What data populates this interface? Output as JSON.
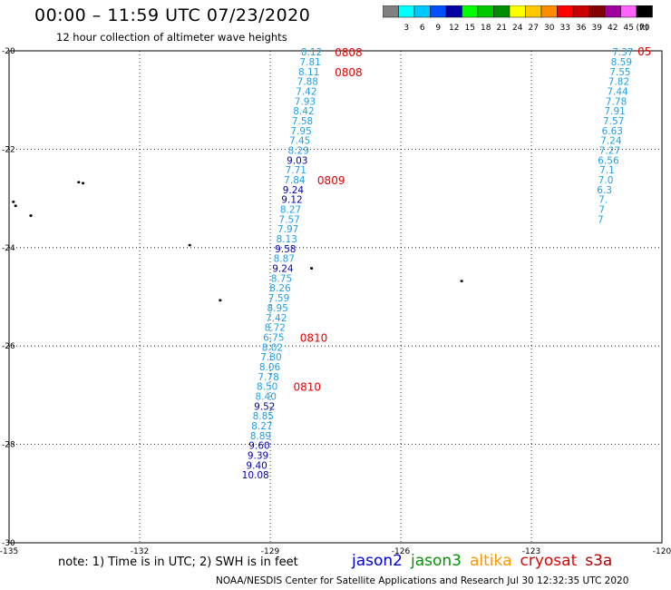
{
  "header": {
    "title": "00:00 – 11:59 UTC 07/23/2020",
    "subtitle": "12 hour collection of altimeter wave heights"
  },
  "color_scale": {
    "unit": "(ft)",
    "swatches": [
      {
        "label": "",
        "color": "#808080"
      },
      {
        "label": "3",
        "color": "#00ffff"
      },
      {
        "label": "6",
        "color": "#00c8ff"
      },
      {
        "label": "9",
        "color": "#0050ff"
      },
      {
        "label": "12",
        "color": "#0000a0"
      },
      {
        "label": "15",
        "color": "#00ff00"
      },
      {
        "label": "18",
        "color": "#00c800"
      },
      {
        "label": "21",
        "color": "#008c00"
      },
      {
        "label": "24",
        "color": "#ffff00"
      },
      {
        "label": "27",
        "color": "#ffc800"
      },
      {
        "label": "30",
        "color": "#ff8c00"
      },
      {
        "label": "33",
        "color": "#ff0000"
      },
      {
        "label": "36",
        "color": "#c80000"
      },
      {
        "label": "39",
        "color": "#820000"
      },
      {
        "label": "42",
        "color": "#a000a0"
      },
      {
        "label": "45",
        "color": "#ff64ff"
      },
      {
        "label": "70",
        "color": "#000000"
      }
    ]
  },
  "map": {
    "lon_ticks": [
      "-135",
      "-132",
      "-129",
      "-126",
      "-123",
      "-120"
    ],
    "lat_ticks": [
      "-20",
      "-22",
      "-24",
      "-26",
      "-28",
      "-30"
    ],
    "lon_range": [
      -135,
      -120
    ],
    "lat_range": [
      -30,
      -20
    ]
  },
  "colors": {
    "light": "#1ea0e6",
    "dark": "#0000b4",
    "time": "#e60000"
  },
  "track_main": [
    {
      "lat": -20.02,
      "lon": -128.05,
      "v": "8.12",
      "c": "light"
    },
    {
      "lat": -20.22,
      "lon": -128.08,
      "v": "7.81",
      "c": "light"
    },
    {
      "lat": -20.42,
      "lon": -128.11,
      "v": "8.11",
      "c": "light"
    },
    {
      "lat": -20.62,
      "lon": -128.14,
      "v": "7.88",
      "c": "light"
    },
    {
      "lat": -20.82,
      "lon": -128.17,
      "v": "7.42",
      "c": "light"
    },
    {
      "lat": -21.02,
      "lon": -128.2,
      "v": "7.93",
      "c": "light"
    },
    {
      "lat": -21.22,
      "lon": -128.23,
      "v": "8.42",
      "c": "light"
    },
    {
      "lat": -21.42,
      "lon": -128.26,
      "v": "7.58",
      "c": "light"
    },
    {
      "lat": -21.62,
      "lon": -128.29,
      "v": "7.95",
      "c": "light"
    },
    {
      "lat": -21.82,
      "lon": -128.32,
      "v": "7.45",
      "c": "light"
    },
    {
      "lat": -22.02,
      "lon": -128.35,
      "v": "8.29",
      "c": "light"
    },
    {
      "lat": -22.22,
      "lon": -128.38,
      "v": "9.03",
      "c": "dark"
    },
    {
      "lat": -22.42,
      "lon": -128.41,
      "v": "7.71",
      "c": "light"
    },
    {
      "lat": -22.62,
      "lon": -128.44,
      "v": "7.84",
      "c": "light"
    },
    {
      "lat": -22.82,
      "lon": -128.47,
      "v": "9.24",
      "c": "dark"
    },
    {
      "lat": -23.02,
      "lon": -128.5,
      "v": "9.12",
      "c": "dark"
    },
    {
      "lat": -23.22,
      "lon": -128.53,
      "v": "8.27",
      "c": "light"
    },
    {
      "lat": -23.42,
      "lon": -128.56,
      "v": "7.57",
      "c": "light"
    },
    {
      "lat": -23.62,
      "lon": -128.59,
      "v": "7.97",
      "c": "light"
    },
    {
      "lat": -23.82,
      "lon": -128.62,
      "v": "8.13",
      "c": "light"
    },
    {
      "lat": -24.02,
      "lon": -128.65,
      "v": "9.58",
      "c": "dark"
    },
    {
      "lat": -24.22,
      "lon": -128.68,
      "v": "8.87",
      "c": "light"
    },
    {
      "lat": -24.42,
      "lon": -128.71,
      "v": "9.24",
      "c": "dark"
    },
    {
      "lat": -24.62,
      "lon": -128.74,
      "v": "8.75",
      "c": "light"
    },
    {
      "lat": -24.82,
      "lon": -128.77,
      "v": "8.26",
      "c": "light"
    },
    {
      "lat": -25.02,
      "lon": -128.8,
      "v": "7.59",
      "c": "light"
    },
    {
      "lat": -25.22,
      "lon": -128.83,
      "v": "8.95",
      "c": "light"
    },
    {
      "lat": -25.42,
      "lon": -128.86,
      "v": "7.42",
      "c": "light"
    },
    {
      "lat": -25.62,
      "lon": -128.89,
      "v": "8.72",
      "c": "light"
    },
    {
      "lat": -25.82,
      "lon": -128.92,
      "v": "6.75",
      "c": "light"
    },
    {
      "lat": -26.02,
      "lon": -128.95,
      "v": "8.02",
      "c": "light"
    },
    {
      "lat": -26.22,
      "lon": -128.98,
      "v": "7.80",
      "c": "light"
    },
    {
      "lat": -26.42,
      "lon": -129.01,
      "v": "8.06",
      "c": "light"
    },
    {
      "lat": -26.62,
      "lon": -129.04,
      "v": "7.78",
      "c": "light"
    },
    {
      "lat": -26.82,
      "lon": -129.07,
      "v": "8.50",
      "c": "light"
    },
    {
      "lat": -27.02,
      "lon": -129.1,
      "v": "8.40",
      "c": "light"
    },
    {
      "lat": -27.22,
      "lon": -129.13,
      "v": "9.52",
      "c": "dark"
    },
    {
      "lat": -27.42,
      "lon": -129.16,
      "v": "8.85",
      "c": "light"
    },
    {
      "lat": -27.62,
      "lon": -129.19,
      "v": "8.27",
      "c": "light"
    },
    {
      "lat": -27.82,
      "lon": -129.22,
      "v": "8.89",
      "c": "light"
    },
    {
      "lat": -28.02,
      "lon": -129.25,
      "v": "9.60",
      "c": "dark"
    },
    {
      "lat": -28.22,
      "lon": -129.28,
      "v": "9.39",
      "c": "dark"
    },
    {
      "lat": -28.42,
      "lon": -129.31,
      "v": "9.40",
      "c": "dark"
    },
    {
      "lat": -28.62,
      "lon": -129.34,
      "v": "10.08",
      "c": "dark"
    }
  ],
  "track_right": [
    {
      "lat": -20.02,
      "lon": -120.9,
      "v": "7.37",
      "c": "light"
    },
    {
      "lat": -20.22,
      "lon": -120.93,
      "v": "8.59",
      "c": "light"
    },
    {
      "lat": -20.42,
      "lon": -120.96,
      "v": "7.55",
      "c": "light"
    },
    {
      "lat": -20.62,
      "lon": -120.99,
      "v": "7.82",
      "c": "light"
    },
    {
      "lat": -20.82,
      "lon": -121.02,
      "v": "7.44",
      "c": "light"
    },
    {
      "lat": -21.02,
      "lon": -121.05,
      "v": "7.78",
      "c": "light"
    },
    {
      "lat": -21.22,
      "lon": -121.08,
      "v": "7.91",
      "c": "light"
    },
    {
      "lat": -21.42,
      "lon": -121.11,
      "v": "7.57",
      "c": "light"
    },
    {
      "lat": -21.62,
      "lon": -121.14,
      "v": "6.63",
      "c": "light"
    },
    {
      "lat": -21.82,
      "lon": -121.17,
      "v": "7.24",
      "c": "light"
    },
    {
      "lat": -22.02,
      "lon": -121.2,
      "v": "7.27",
      "c": "light"
    },
    {
      "lat": -22.22,
      "lon": -121.23,
      "v": "6.56",
      "c": "light"
    },
    {
      "lat": -22.42,
      "lon": -121.26,
      "v": "7.1",
      "c": "light"
    },
    {
      "lat": -22.62,
      "lon": -121.29,
      "v": "7.0",
      "c": "light"
    },
    {
      "lat": -22.82,
      "lon": -121.32,
      "v": "6.3",
      "c": "light"
    },
    {
      "lat": -23.02,
      "lon": -121.35,
      "v": "7.",
      "c": "light"
    },
    {
      "lat": -23.22,
      "lon": -121.38,
      "v": "7",
      "c": "light"
    },
    {
      "lat": -23.42,
      "lon": -121.41,
      "v": "7",
      "c": "light"
    }
  ],
  "time_labels": [
    {
      "lat": -20.02,
      "lon": -127.2,
      "text": "0808"
    },
    {
      "lat": -20.42,
      "lon": -127.2,
      "text": "0808"
    },
    {
      "lat": -22.62,
      "lon": -127.6,
      "text": "0809"
    },
    {
      "lat": -25.82,
      "lon": -128.0,
      "text": "0810"
    },
    {
      "lat": -26.82,
      "lon": -128.15,
      "text": "0810"
    },
    {
      "lat": -20.0,
      "lon": -120.4,
      "text": "05"
    }
  ],
  "islands": [
    {
      "lat": -22.67,
      "lon": -133.4
    },
    {
      "lat": -22.69,
      "lon": -133.3
    },
    {
      "lat": -23.07,
      "lon": -134.9
    },
    {
      "lat": -23.15,
      "lon": -134.85
    },
    {
      "lat": -23.35,
      "lon": -134.5
    },
    {
      "lat": -23.95,
      "lon": -130.85
    },
    {
      "lat": -24.42,
      "lon": -128.05
    },
    {
      "lat": -24.68,
      "lon": -124.6
    },
    {
      "lat": -25.07,
      "lon": -130.15
    }
  ],
  "note": "note: 1) Time is in UTC; 2) SWH is in feet",
  "satellites": [
    {
      "name": "jason2",
      "color": "#0000dc"
    },
    {
      "name": "jason3",
      "color": "#009600"
    },
    {
      "name": "altika",
      "color": "#ff9600"
    },
    {
      "name": "cryosat",
      "color": "#e60000"
    },
    {
      "name": "s3a",
      "color": "#b40000"
    }
  ],
  "footer": "NOAA/NESDIS Center for Satellite Applications and Research    Jul 30 12:32:35 UTC 2020"
}
